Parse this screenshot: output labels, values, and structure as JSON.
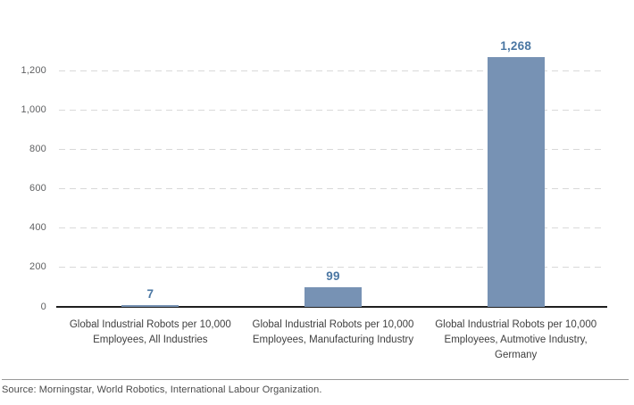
{
  "chart_data": {
    "type": "bar",
    "title": "",
    "xlabel": "",
    "ylabel": "",
    "categories": [
      "Global Industrial Robots per 10,000 Employees, All Industries",
      "Global Industrial Robots per 10,000 Employees, Manufacturing Industry",
      "Global Industrial Robots per 10,000 Employees, Autmotive Industry, Germany"
    ],
    "category_lines": [
      [
        "Global Industrial Robots per 10,000",
        "Employees, All Industries"
      ],
      [
        "Global Industrial Robots per 10,000",
        "Employees, Manufacturing Industry"
      ],
      [
        "Global Industrial Robots per 10,000",
        "Employees, Autmotive Industry,",
        "Germany"
      ]
    ],
    "values": [
      7,
      99,
      1268
    ],
    "value_labels": [
      "7",
      "99",
      "1,268"
    ],
    "yticks": [
      0,
      200,
      400,
      600,
      800,
      1000,
      1200
    ],
    "ytick_labels": [
      "0",
      "200",
      "400",
      "600",
      "800",
      "1,000",
      "1,200"
    ],
    "ylim": [
      0,
      1200
    ],
    "grid": "horizontal-dashed",
    "legend": "none"
  },
  "colors": {
    "background": "#ffffff",
    "bar_fill": "#7792b4",
    "value_label": "#4b77a3",
    "gridline": "#d9d9d9",
    "axis_line": "#1f1f1f",
    "tick_label": "#5f6062",
    "category_label": "#3f3f3f",
    "divider": "#999999",
    "source_text": "#4a4a4a"
  },
  "source": {
    "text": "Source: Morningstar, World Robotics, International Labour Organization."
  }
}
